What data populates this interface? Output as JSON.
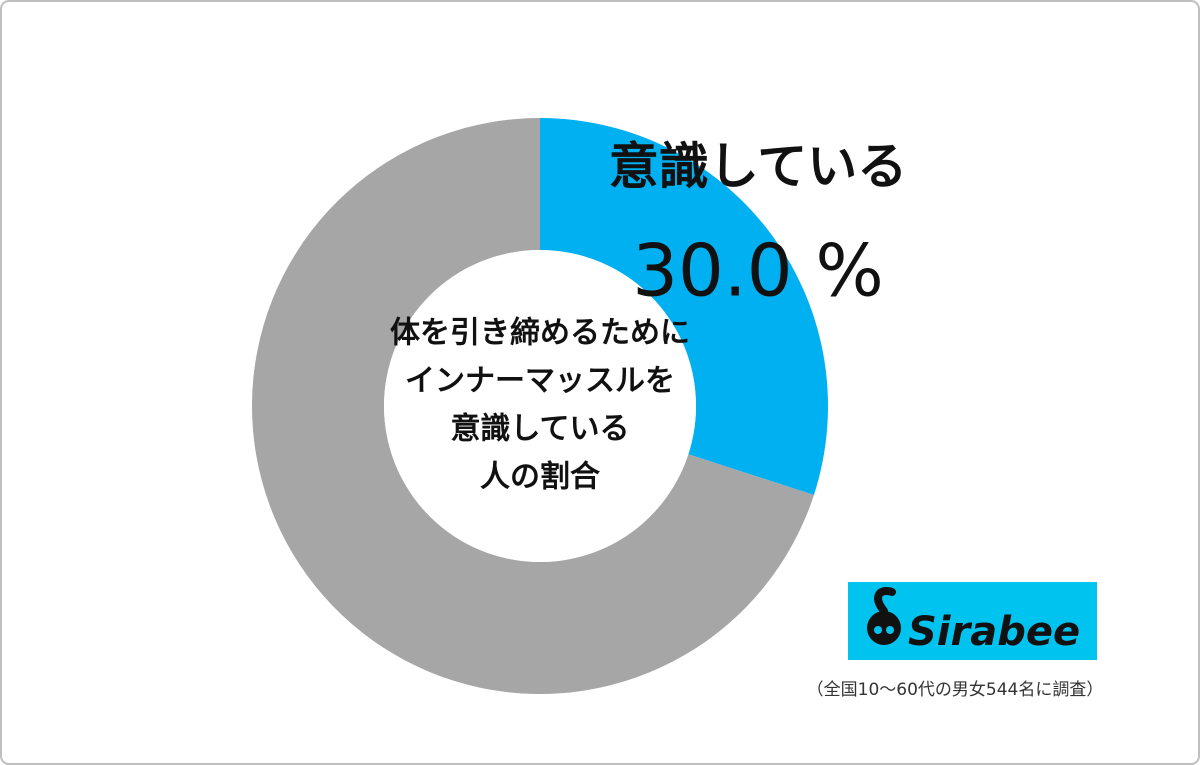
{
  "chart_data": {
    "type": "pie",
    "donut": true,
    "categories": [
      "意識している",
      null
    ],
    "values": [
      30,
      70
    ],
    "value_labels": [
      "30.0 %",
      null
    ],
    "colors": [
      "#00b0f0",
      "#a6a6a6"
    ],
    "center_label": [
      "体を引き締めるために",
      "インナーマッスルを",
      "意識している",
      "人の割合"
    ],
    "logo": "Sirabee",
    "note": "（全国10～60代の男女544名に調査）"
  }
}
